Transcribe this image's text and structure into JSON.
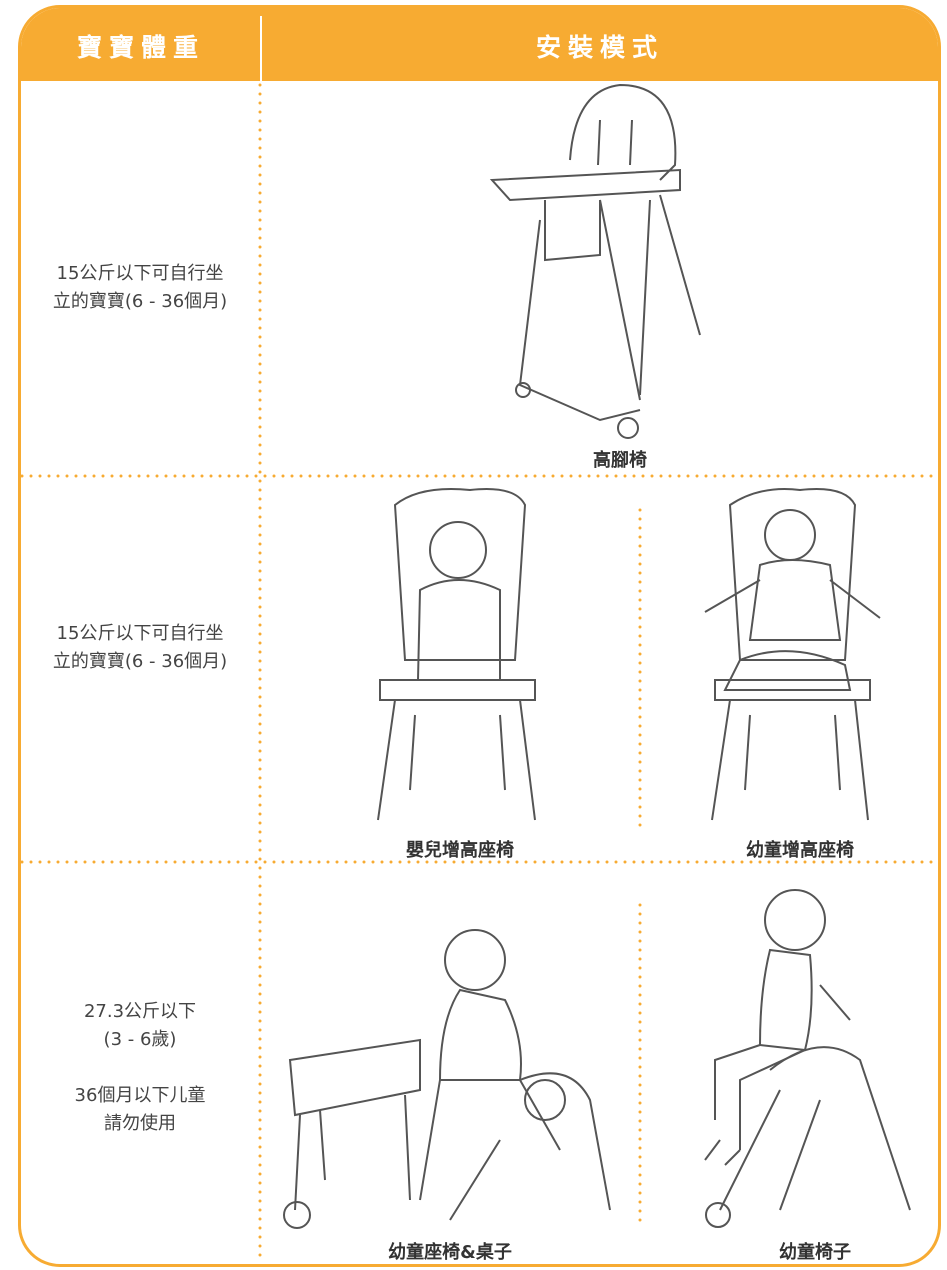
{
  "table": {
    "headers": [
      "寶寶體重",
      "安裝模式"
    ],
    "rows": [
      {
        "weight": [
          "15公斤以下可自行坐",
          "立的寶寶(6 - 36個月)"
        ],
        "modes": [
          "高腳椅"
        ]
      },
      {
        "weight": [
          "15公斤以下可自行坐",
          "立的寶寶(6 - 36個月)"
        ],
        "modes": [
          "嬰兒增高座椅",
          "幼童增高座椅"
        ]
      },
      {
        "weight": [
          "27.3公斤以下",
          "(3 - 6歲)",
          "36個月以下儿童",
          "請勿使用"
        ],
        "modes": [
          "幼童座椅&桌子",
          "幼童椅子"
        ]
      }
    ]
  }
}
